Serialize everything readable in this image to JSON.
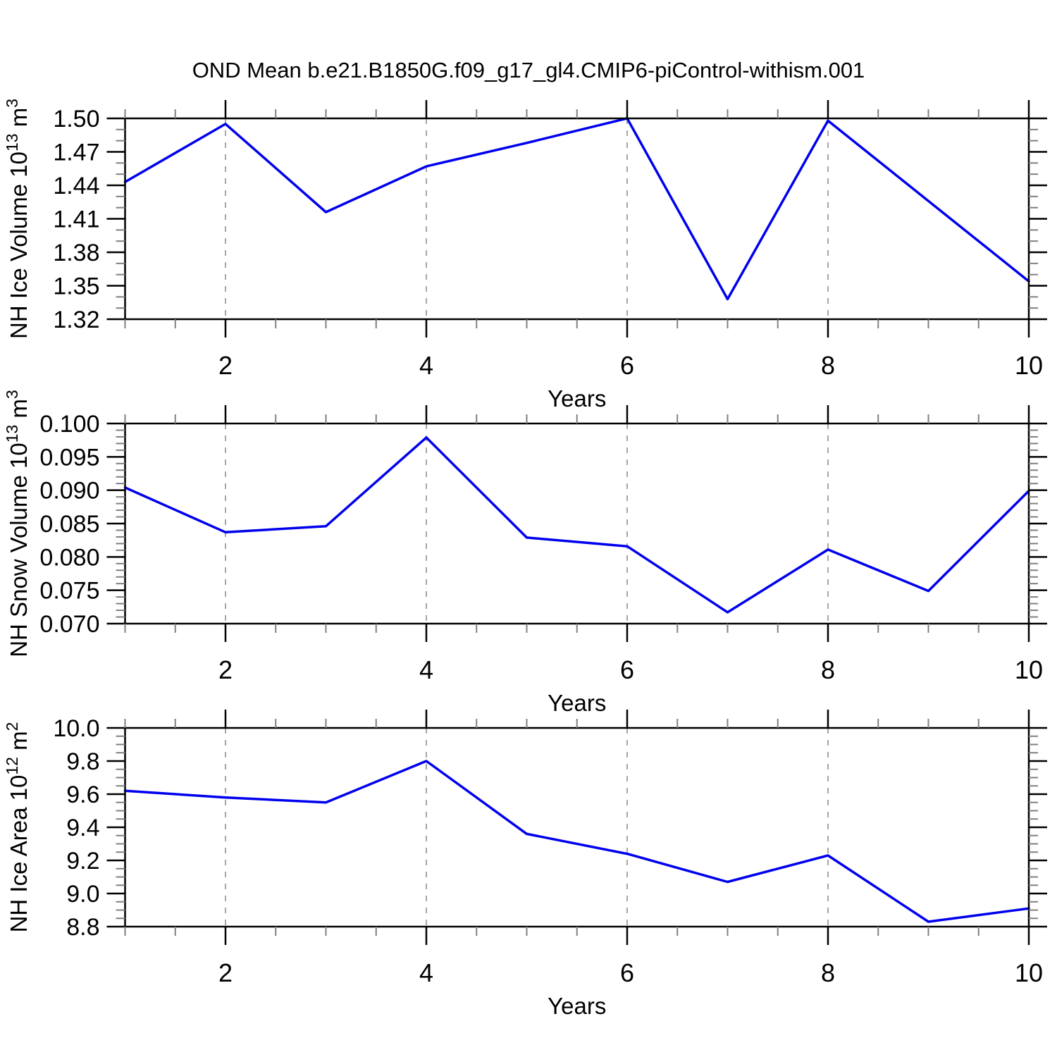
{
  "title": "OND Mean b.e21.B1850G.f09_g17_gl4.CMIP6-piControl-withism.001",
  "colors": {
    "line": "#0000EE",
    "grid_dashed": "#A6A6A6",
    "frame": "#000000",
    "major_tick": "#000000",
    "minor_tick": "#808080",
    "text": "#000000",
    "background": "#FFFFFF"
  },
  "chart_data": [
    {
      "type": "line",
      "panel": "nh-ice-volume",
      "x": [
        1,
        2,
        3,
        4,
        5,
        6,
        7,
        8,
        9,
        10
      ],
      "values": [
        1.443,
        1.495,
        1.416,
        1.457,
        1.478,
        1.5,
        1.338,
        1.498,
        1.426,
        1.354
      ],
      "ylabel_parts": [
        {
          "t": "NH Ice Volume 10"
        },
        {
          "t": "13",
          "sup": true
        },
        {
          "t": " m"
        },
        {
          "t": "3",
          "sup": true
        }
      ],
      "ylabel_plain": "NH Ice Volume 10^13 m^3",
      "xlabel": "Years",
      "xlim": [
        1,
        10
      ],
      "ylim": [
        1.32,
        1.5
      ],
      "y_major_step": 0.03,
      "y_minor_step": 0.01,
      "y_tick_decimals": 2,
      "x_tick_labels": [
        2,
        4,
        6,
        8,
        10
      ],
      "x_minor_step": 0.5,
      "grid_x": [
        2,
        4,
        6,
        8
      ],
      "grid": "vertical-dashed",
      "legend": "none"
    },
    {
      "type": "line",
      "panel": "nh-snow-volume",
      "x": [
        1,
        2,
        3,
        4,
        5,
        6,
        7,
        8,
        9,
        10
      ],
      "values": [
        0.0904,
        0.0837,
        0.0846,
        0.0979,
        0.0829,
        0.0816,
        0.0717,
        0.0811,
        0.0749,
        0.0899
      ],
      "ylabel_parts": [
        {
          "t": "NH Snow Volume 10"
        },
        {
          "t": "13",
          "sup": true
        },
        {
          "t": " m"
        },
        {
          "t": "3",
          "sup": true
        }
      ],
      "ylabel_plain": "NH Snow Volume 10^13 m^3",
      "xlabel": "Years",
      "xlim": [
        1,
        10
      ],
      "ylim": [
        0.07,
        0.1
      ],
      "y_major_step": 0.005,
      "y_minor_step": 0.001,
      "y_tick_decimals": 3,
      "x_tick_labels": [
        2,
        4,
        6,
        8,
        10
      ],
      "x_minor_step": 0.5,
      "grid_x": [
        2,
        4,
        6,
        8
      ],
      "grid": "vertical-dashed",
      "legend": "none"
    },
    {
      "type": "line",
      "panel": "nh-ice-area",
      "x": [
        1,
        2,
        3,
        4,
        5,
        6,
        7,
        8,
        9,
        10
      ],
      "values": [
        9.62,
        9.58,
        9.55,
        9.8,
        9.36,
        9.24,
        9.07,
        9.23,
        8.83,
        8.91
      ],
      "ylabel_parts": [
        {
          "t": "NH Ice Area 10"
        },
        {
          "t": "12",
          "sup": true
        },
        {
          "t": " m"
        },
        {
          "t": "2",
          "sup": true
        }
      ],
      "ylabel_plain": "NH Ice Area 10^12 m^2",
      "xlabel": "Years",
      "xlim": [
        1,
        10
      ],
      "ylim": [
        8.8,
        10.0
      ],
      "y_major_step": 0.2,
      "y_minor_step": 0.05,
      "y_tick_decimals": 1,
      "x_tick_labels": [
        2,
        4,
        6,
        8,
        10
      ],
      "x_minor_step": 0.5,
      "grid_x": [
        2,
        4,
        6,
        8
      ],
      "grid": "vertical-dashed",
      "legend": "none"
    }
  ]
}
